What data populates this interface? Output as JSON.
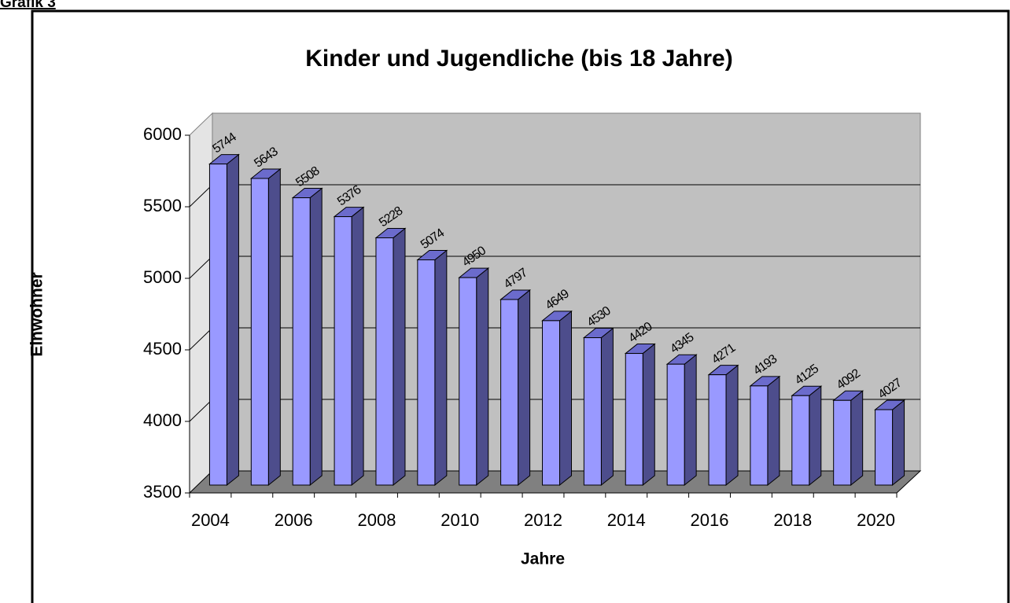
{
  "header": "Grafik 3",
  "chart_data": {
    "type": "bar3d",
    "title": "Kinder und Jugendliche (bis 18 Jahre)",
    "x_label": "Jahre",
    "y_label": "Einwohner",
    "categories": [
      "2004",
      null,
      "2006",
      null,
      "2008",
      null,
      "2010",
      null,
      "2012",
      null,
      "2014",
      null,
      "2016",
      null,
      "2018",
      null,
      "2020"
    ],
    "values": [
      5744,
      5643,
      5508,
      5376,
      5228,
      5074,
      4950,
      4797,
      4649,
      4530,
      4420,
      4345,
      4271,
      4193,
      4125,
      4092,
      4027
    ],
    "color": "#9999ff",
    "side_color": "#4d4d8c",
    "top_color": "#6b6bcc",
    "ylim": [
      3500,
      6000
    ],
    "yticks": [
      3500,
      4000,
      4500,
      5000,
      5500,
      6000
    ],
    "grid": true
  }
}
